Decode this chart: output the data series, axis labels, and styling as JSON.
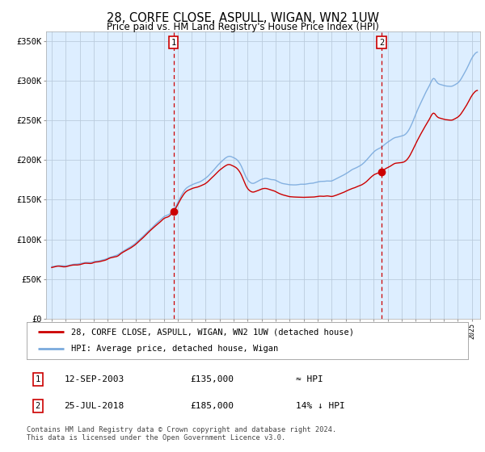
{
  "title": "28, CORFE CLOSE, ASPULL, WIGAN, WN2 1UW",
  "subtitle": "Price paid vs. HM Land Registry's House Price Index (HPI)",
  "ylabel_ticks": [
    "£0",
    "£50K",
    "£100K",
    "£150K",
    "£200K",
    "£250K",
    "£300K",
    "£350K"
  ],
  "ytick_vals": [
    0,
    50000,
    100000,
    150000,
    200000,
    250000,
    300000,
    350000
  ],
  "ylim": [
    0,
    362000
  ],
  "xlim_start": 1994.6,
  "xlim_end": 2025.6,
  "sale1_date": "12-SEP-2003",
  "sale1_price": 135000,
  "sale1_label": "≈ HPI",
  "sale1_year": 2003.7,
  "sale2_date": "25-JUL-2018",
  "sale2_price": 185000,
  "sale2_label": "14% ↓ HPI",
  "sale2_year": 2018.55,
  "hpi_line_color": "#7aaadd",
  "price_line_color": "#cc0000",
  "sale_dot_color": "#cc0000",
  "vline_color": "#cc0000",
  "bg_color": "#ddeeff",
  "grid_color": "#bbccdd",
  "legend_line1": "28, CORFE CLOSE, ASPULL, WIGAN, WN2 1UW (detached house)",
  "legend_line2": "HPI: Average price, detached house, Wigan",
  "footer": "Contains HM Land Registry data © Crown copyright and database right 2024.\nThis data is licensed under the Open Government Licence v3.0.",
  "annotation1_num": "1",
  "annotation2_num": "2"
}
